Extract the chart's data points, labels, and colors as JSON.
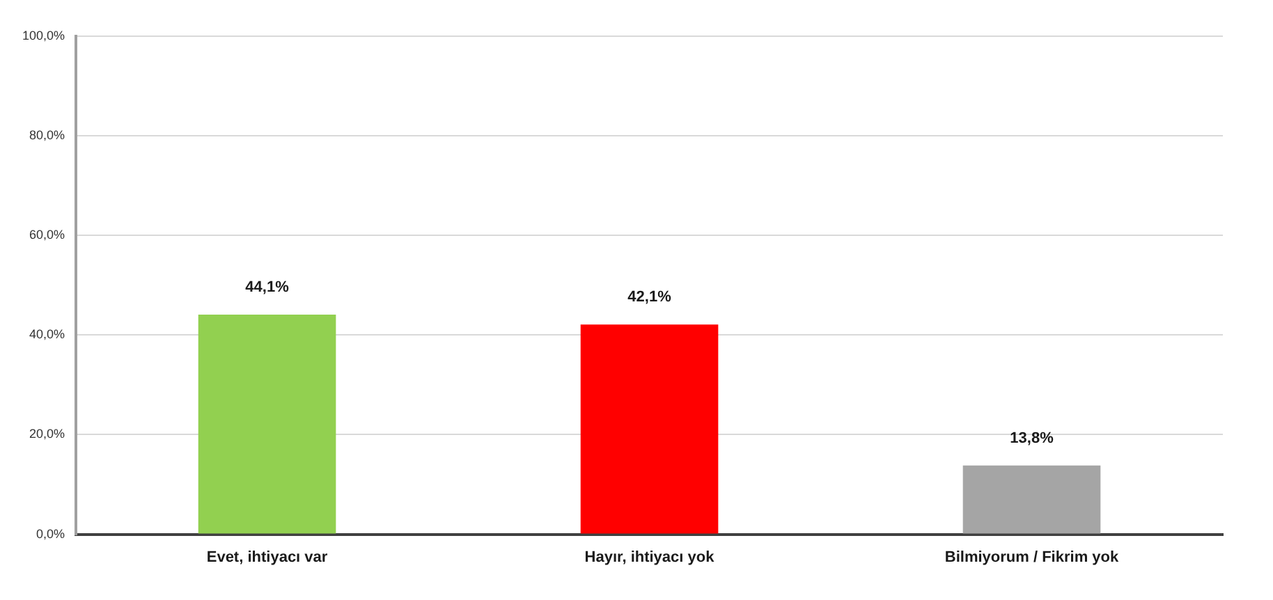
{
  "chart_data": {
    "type": "bar",
    "categories": [
      "Evet, ihtiyacı var",
      "Hayır, ihtiyacı yok",
      "Bilmiyorum / Fikrim yok"
    ],
    "values": [
      44.1,
      42.1,
      13.8
    ],
    "colors": [
      "#92d050",
      "#ff0000",
      "#a5a5a5"
    ],
    "value_labels": [
      "44,1%",
      "42,1%",
      "13,8%"
    ],
    "ylim": [
      0,
      100
    ],
    "yticks": [
      {
        "value": 0,
        "label": "0,0%"
      },
      {
        "value": 20,
        "label": "20,0%"
      },
      {
        "value": 40,
        "label": "40,0%"
      },
      {
        "value": 60,
        "label": "60,0%"
      },
      {
        "value": 80,
        "label": "80,0%"
      },
      {
        "value": 100,
        "label": "100,0%"
      }
    ],
    "grid": "y"
  }
}
